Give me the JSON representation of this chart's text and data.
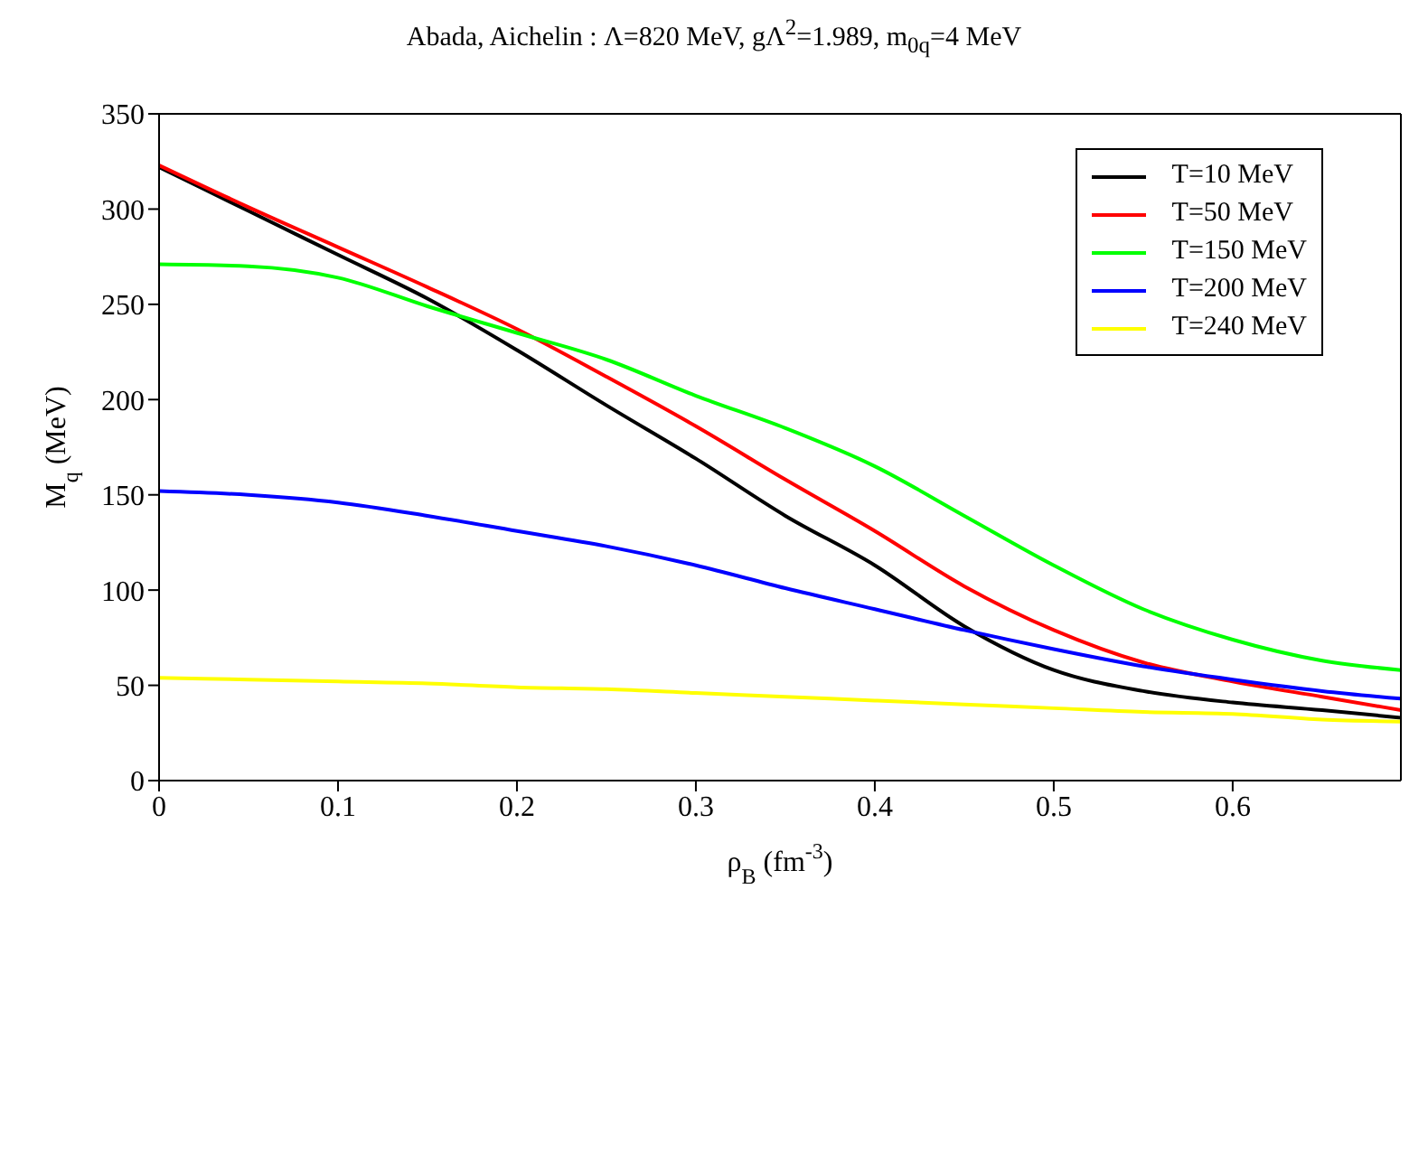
{
  "chart_data": {
    "type": "line",
    "title": "Abada, Aichelin : Λ=820 MeV, gΛ$^{2}$=1.989, m$_{0q}$=4 MeV",
    "xlabel": "ρ$_{B}$ (fm$^{-3}$)",
    "ylabel": "M$_{q}$ (MeV)",
    "x": [
      0,
      0.05,
      0.1,
      0.15,
      0.2,
      0.25,
      0.3,
      0.35,
      0.4,
      0.45,
      0.5,
      0.55,
      0.6,
      0.65,
      0.694
    ],
    "series": [
      {
        "name": "T=10 MeV",
        "color": "#000000",
        "values": [
          322,
          299,
          276,
          253,
          226,
          197,
          169,
          139,
          113,
          81,
          58,
          47,
          41,
          37,
          33
        ]
      },
      {
        "name": "T=50 MeV",
        "color": "#ff0000",
        "values": [
          323,
          301,
          280,
          259,
          237,
          212,
          186,
          158,
          131,
          102,
          79,
          62,
          52,
          44,
          37
        ]
      },
      {
        "name": "T=150 MeV",
        "color": "#00ff00",
        "values": [
          271,
          270,
          264,
          249,
          235,
          221,
          202,
          185,
          165,
          139,
          113,
          90,
          74,
          63,
          58
        ]
      },
      {
        "name": "T=200 MeV",
        "color": "#0000ff",
        "values": [
          152,
          150,
          146,
          139,
          131,
          123,
          113,
          101,
          90,
          79,
          69,
          60,
          53,
          47,
          43
        ]
      },
      {
        "name": "T=240 MeV",
        "color": "#ffff00",
        "values": [
          54,
          53,
          52,
          51,
          49,
          48,
          46,
          44,
          42,
          40,
          38,
          36,
          35,
          32,
          31
        ]
      }
    ],
    "xlim": [
      0,
      0.694
    ],
    "xticks": [
      0,
      0.1,
      0.2,
      0.3,
      0.4,
      0.5,
      0.6
    ],
    "ylim": [
      0,
      350
    ],
    "yticks": [
      0,
      50,
      100,
      150,
      200,
      250,
      300,
      350
    ],
    "grid": false,
    "legend": "top right",
    "marker": "none",
    "line_style": "solid"
  }
}
